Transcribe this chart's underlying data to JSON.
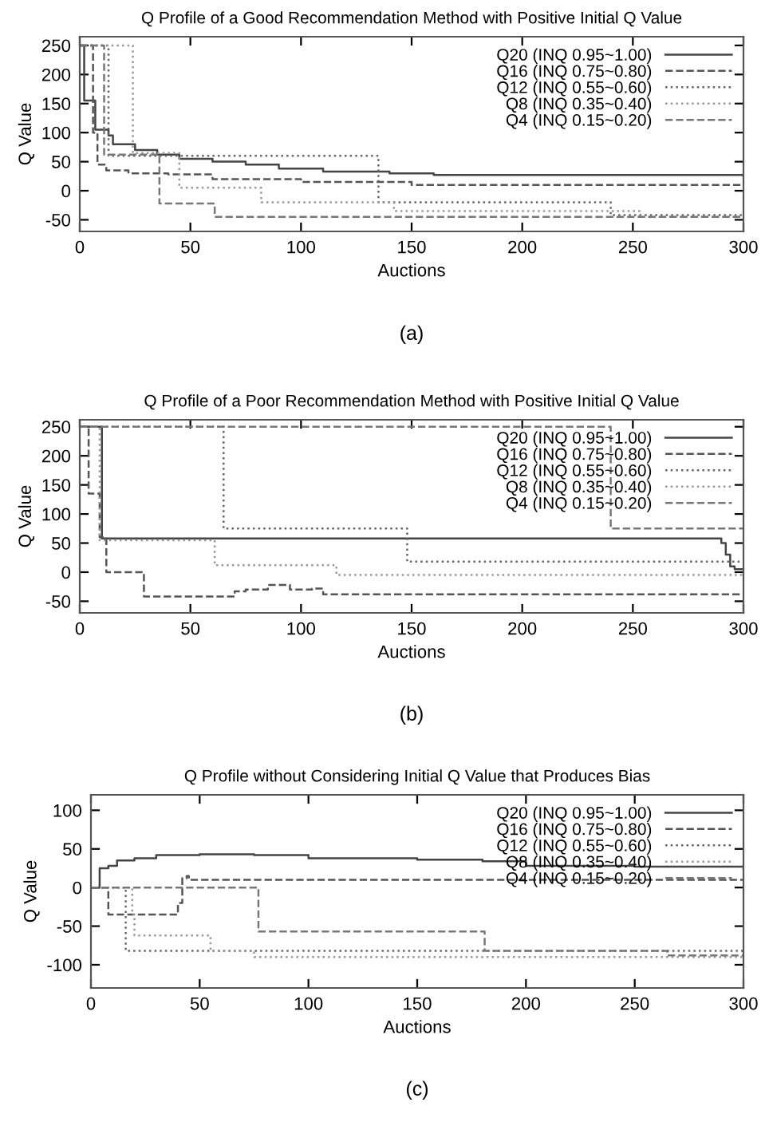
{
  "chart_data": [
    {
      "type": "step",
      "title": "Q Profile of a Good Recommendation Method with Positive Initial Q Value",
      "xlabel": "Auctions",
      "ylabel": "Q Value",
      "annotations": [
        "(a)"
      ],
      "xlim": [
        0,
        300
      ],
      "ylim": [
        -70,
        265
      ],
      "xticks": [
        0,
        50,
        100,
        150,
        200,
        250,
        300
      ],
      "yticks": [
        -50,
        0,
        50,
        100,
        150,
        200,
        250
      ],
      "legend": "top right",
      "grid": false,
      "series": [
        {
          "name": "Q20 (INQ 0.95~1.00)",
          "color": "#444444",
          "line_style": "solid",
          "x": [
            0,
            2,
            7,
            13,
            15,
            25,
            35,
            45,
            60,
            75,
            90,
            110,
            140,
            160,
            300
          ],
          "values": [
            250,
            155,
            105,
            95,
            80,
            70,
            62,
            55,
            50,
            45,
            38,
            33,
            30,
            27,
            25
          ]
        },
        {
          "name": "Q16 (INQ 0.75~0.80)",
          "color": "#555555",
          "line_style": "dashed",
          "x": [
            0,
            6,
            8,
            12,
            22,
            40,
            60,
            100,
            150,
            300
          ],
          "values": [
            250,
            100,
            45,
            35,
            30,
            28,
            20,
            15,
            10,
            10
          ]
        },
        {
          "name": "Q12 (INQ 0.55~0.60)",
          "color": "#666666",
          "line_style": "dotted",
          "x": [
            0,
            13,
            135,
            240,
            300
          ],
          "values": [
            250,
            60,
            -20,
            -42,
            -42
          ]
        },
        {
          "name": "Q8 (INQ 0.35~0.40)",
          "color": "#999999",
          "line_style": "dotted",
          "x": [
            0,
            24,
            45,
            82,
            142,
            253,
            300
          ],
          "values": [
            250,
            65,
            5,
            -20,
            -35,
            -45,
            -45
          ]
        },
        {
          "name": "Q4 (INQ 0.15~0.20)",
          "color": "#777777",
          "line_style": "dashed",
          "x": [
            0,
            11,
            36,
            61,
            300
          ],
          "values": [
            250,
            62,
            -22,
            -45,
            -45
          ]
        }
      ]
    },
    {
      "type": "step",
      "title": "Q Profile of a Poor Recommendation Method with Positive Initial Q Value",
      "xlabel": "Auctions",
      "ylabel": "Q Value",
      "annotations": [
        "(b)"
      ],
      "xlim": [
        0,
        300
      ],
      "ylim": [
        -70,
        262
      ],
      "xticks": [
        0,
        50,
        100,
        150,
        200,
        250,
        300
      ],
      "yticks": [
        -50,
        0,
        50,
        100,
        150,
        200,
        250
      ],
      "legend": "top right",
      "grid": false,
      "series": [
        {
          "name": "Q20 (INQ 0.95~1.00)",
          "color": "#444444",
          "line_style": "solid",
          "x": [
            0,
            10,
            290,
            292,
            294,
            296,
            300
          ],
          "values": [
            250,
            58,
            50,
            30,
            10,
            5,
            5
          ]
        },
        {
          "name": "Q16 (INQ 0.75~0.80)",
          "color": "#555555",
          "line_style": "dashed",
          "x": [
            0,
            4,
            9,
            12,
            29,
            70,
            75,
            85,
            95,
            105,
            110,
            115,
            300
          ],
          "values": [
            250,
            135,
            60,
            0,
            -42,
            -33,
            -30,
            -22,
            -30,
            -28,
            -38,
            -38,
            -38
          ]
        },
        {
          "name": "Q12 (INQ 0.55~0.60)",
          "color": "#666666",
          "line_style": "dotted",
          "x": [
            0,
            65,
            148,
            300
          ],
          "values": [
            250,
            75,
            18,
            18
          ]
        },
        {
          "name": "Q8 (INQ 0.35~0.40)",
          "color": "#999999",
          "line_style": "dotted",
          "x": [
            0,
            9,
            61,
            116,
            300
          ],
          "values": [
            250,
            55,
            12,
            -5,
            -5
          ]
        },
        {
          "name": "Q4 (INQ 0.15~0.20)",
          "color": "#777777",
          "line_style": "dashed",
          "x": [
            0,
            240,
            300
          ],
          "values": [
            250,
            75,
            75
          ]
        }
      ]
    },
    {
      "type": "step",
      "title": "Q Profile without Considering Initial Q Value that Produces Bias",
      "xlabel": "Auctions",
      "ylabel": "Q Value",
      "annotations": [
        "(c)"
      ],
      "xlim": [
        0,
        300
      ],
      "ylim": [
        -130,
        120
      ],
      "xticks": [
        0,
        50,
        100,
        150,
        200,
        250,
        300
      ],
      "yticks": [
        -100,
        -50,
        0,
        50,
        100
      ],
      "legend": "top right",
      "grid": false,
      "series": [
        {
          "name": "Q20 (INQ 0.95~1.00)",
          "color": "#444444",
          "line_style": "solid",
          "x": [
            0,
            4,
            8,
            12,
            20,
            30,
            50,
            75,
            100,
            150,
            180,
            200,
            250,
            300
          ],
          "values": [
            0,
            25,
            28,
            35,
            38,
            42,
            43,
            42,
            38,
            36,
            34,
            28,
            27,
            25
          ]
        },
        {
          "name": "Q16 (INQ 0.75~0.80)",
          "color": "#555555",
          "line_style": "dashed",
          "x": [
            0,
            8,
            40,
            42,
            44,
            45,
            50,
            300
          ],
          "values": [
            0,
            -35,
            -20,
            12,
            15,
            10,
            10,
            10
          ]
        },
        {
          "name": "Q12 (INQ 0.55~0.60)",
          "color": "#666666",
          "line_style": "dotted",
          "x": [
            0,
            16,
            300
          ],
          "values": [
            0,
            -82,
            -82
          ]
        },
        {
          "name": "Q8 (INQ 0.35~0.40)",
          "color": "#999999",
          "line_style": "dotted",
          "x": [
            0,
            19,
            20,
            55,
            75,
            300
          ],
          "values": [
            0,
            -35,
            -62,
            -82,
            -90,
            -90
          ]
        },
        {
          "name": "Q4 (INQ 0.15~0.20)",
          "color": "#777777",
          "line_style": "dashed",
          "x": [
            0,
            77,
            181,
            265,
            300
          ],
          "values": [
            0,
            -57,
            -82,
            -88,
            -88
          ]
        }
      ]
    }
  ]
}
